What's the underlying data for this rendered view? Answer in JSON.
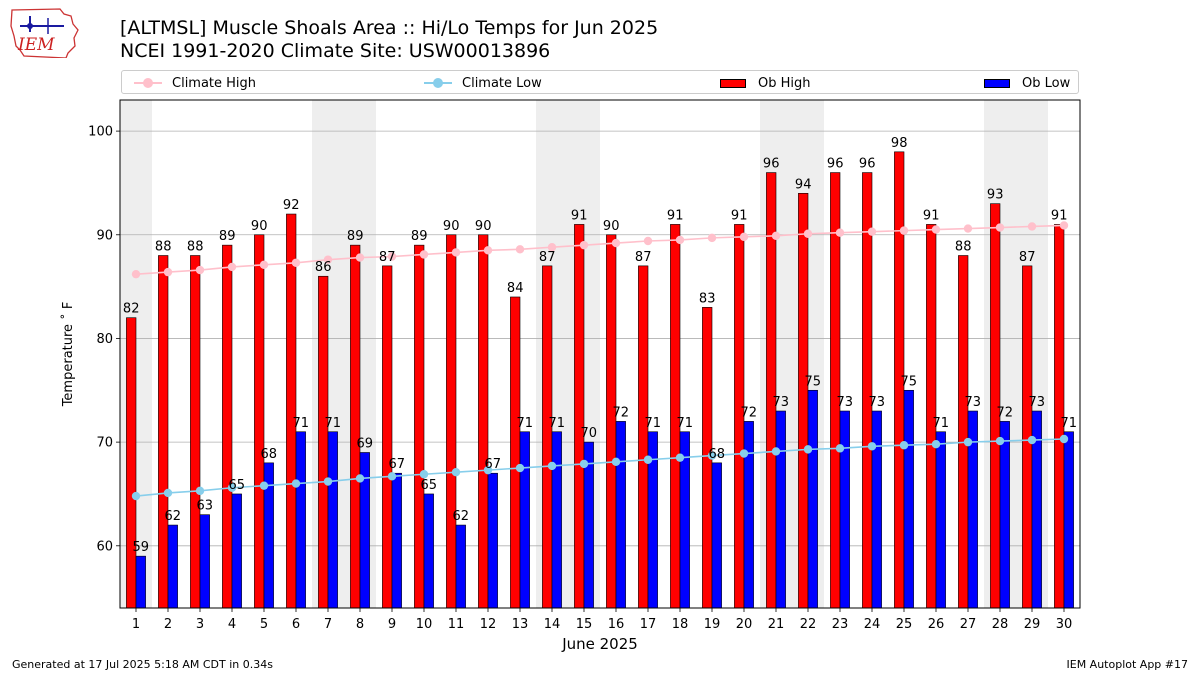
{
  "header": {
    "logo_text": "IEM",
    "title_line1": "[ALTMSL] Muscle Shoals Area :: Hi/Lo Temps for Jun 2025",
    "title_line2": "NCEI 1991-2020 Climate Site: USW00013896"
  },
  "footer": {
    "generated": "Generated at 17 Jul 2025 5:18 AM CDT in 0.34s",
    "app": "IEM Autoplot App #17"
  },
  "chart_data": {
    "type": "bar",
    "xlabel": "June 2025",
    "ylabel": "Temperature ˚ F",
    "ylim": [
      54,
      103
    ],
    "yticks": [
      60,
      70,
      80,
      90,
      100
    ],
    "grid": "horizontal",
    "legend_placement": "top",
    "categories": [
      "1",
      "2",
      "3",
      "4",
      "5",
      "6",
      "7",
      "8",
      "9",
      "10",
      "11",
      "12",
      "13",
      "14",
      "15",
      "16",
      "17",
      "18",
      "19",
      "20",
      "21",
      "22",
      "23",
      "24",
      "25",
      "26",
      "27",
      "28",
      "29",
      "30"
    ],
    "weekend_shaded_days": [
      1,
      7,
      8,
      14,
      15,
      21,
      22,
      28,
      29
    ],
    "series": [
      {
        "name": "Climate High",
        "kind": "line",
        "color": "#ffc0cb",
        "values": [
          86.2,
          86.4,
          86.6,
          86.9,
          87.1,
          87.3,
          87.6,
          87.8,
          87.9,
          88.1,
          88.3,
          88.5,
          88.6,
          88.8,
          89.0,
          89.2,
          89.4,
          89.5,
          89.7,
          89.8,
          89.9,
          90.1,
          90.2,
          90.3,
          90.4,
          90.5,
          90.6,
          90.7,
          90.8,
          90.9
        ]
      },
      {
        "name": "Climate Low",
        "kind": "line",
        "color": "#87ceeb",
        "values": [
          64.8,
          65.1,
          65.3,
          65.6,
          65.8,
          66.0,
          66.2,
          66.5,
          66.7,
          66.9,
          67.1,
          67.3,
          67.5,
          67.7,
          67.9,
          68.1,
          68.3,
          68.5,
          68.7,
          68.9,
          69.1,
          69.3,
          69.4,
          69.6,
          69.7,
          69.8,
          70.0,
          70.1,
          70.2,
          70.3
        ]
      },
      {
        "name": "Ob High",
        "kind": "bar",
        "color": "#ff0000",
        "values": [
          82,
          88,
          88,
          89,
          90,
          92,
          86,
          89,
          87,
          89,
          90,
          90,
          84,
          87,
          91,
          90,
          87,
          91,
          83,
          91,
          96,
          94,
          96,
          96,
          98,
          91,
          88,
          93,
          87,
          91
        ]
      },
      {
        "name": "Ob Low",
        "kind": "bar",
        "color": "#0000ff",
        "values": [
          59,
          62,
          63,
          65,
          68,
          71,
          71,
          69,
          67,
          65,
          62,
          67,
          71,
          71,
          70,
          72,
          71,
          71,
          68,
          72,
          73,
          75,
          73,
          73,
          75,
          71,
          73,
          72,
          73,
          71
        ]
      }
    ]
  }
}
